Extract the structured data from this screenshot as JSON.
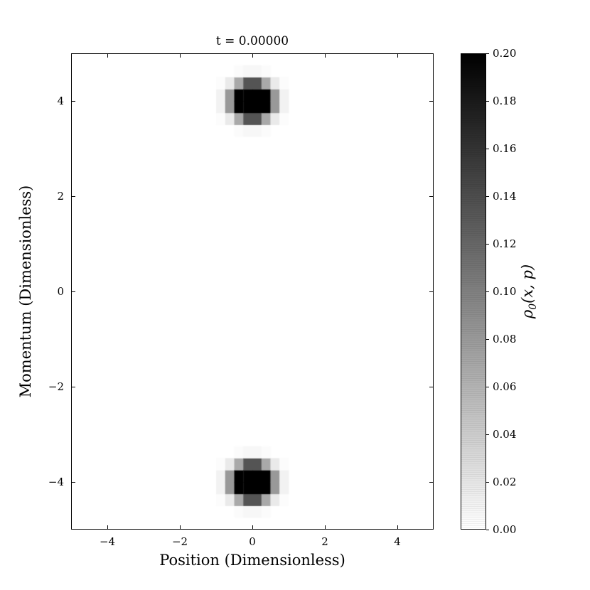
{
  "figure": {
    "background": "#ffffff",
    "frame_color": "#000000"
  },
  "chart_data": {
    "type": "heatmap",
    "title": "t = 0.00000",
    "xlabel": "Position (Dimensionless)",
    "ylabel": "Momentum (Dimensionless)",
    "xlim": [
      -5,
      5
    ],
    "ylim": [
      -5,
      5
    ],
    "xticks": [
      -4,
      -2,
      0,
      2,
      4
    ],
    "xtick_labels": [
      "−4",
      "−2",
      "0",
      "2",
      "4"
    ],
    "yticks": [
      -4,
      -2,
      0,
      2,
      4
    ],
    "ytick_labels": [
      "−4",
      "−2",
      "0",
      "2",
      "4"
    ],
    "grid": false,
    "grid_step": 0.25,
    "colormap": "Greys: 0.00 = white, 0.20 = black",
    "blobs": [
      {
        "x": 0,
        "p": 4,
        "sigma_x": 0.3,
        "sigma_p": 0.2,
        "peak": 0.85
      },
      {
        "x": 0,
        "p": -4,
        "sigma_x": 0.3,
        "sigma_p": 0.2,
        "peak": 0.85
      }
    ],
    "colorbar": {
      "label": "ρ₀(x, p)",
      "label_rho": "ρ",
      "label_sub": "0",
      "label_args": "(x, p)",
      "vmin": 0.0,
      "vmax": 0.2,
      "tick_values": [
        0.0,
        0.02,
        0.04,
        0.06,
        0.08,
        0.1,
        0.12,
        0.14,
        0.16,
        0.18,
        0.2
      ],
      "tick_labels": [
        "0.00",
        "0.02",
        "0.04",
        "0.06",
        "0.08",
        "0.10",
        "0.12",
        "0.14",
        "0.16",
        "0.18",
        "0.20"
      ],
      "legend_position": "right"
    }
  }
}
